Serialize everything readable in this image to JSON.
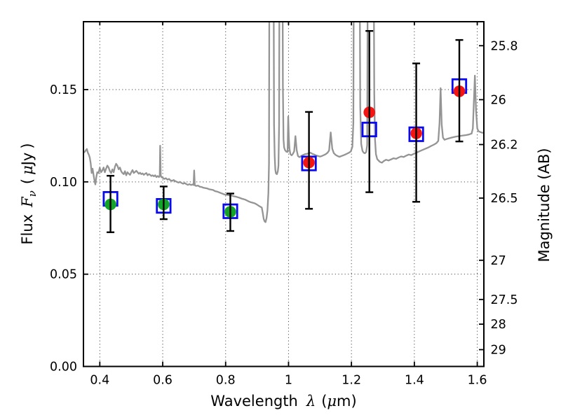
{
  "figure": {
    "xlabel": {
      "word": "Wavelength",
      "lambda": "λ",
      "open": "(",
      "mu": "μ",
      "close": "m)"
    },
    "ylabel_left": {
      "word": "Flux",
      "f_symbol": "F",
      "nu": "ν",
      "open": "(",
      "mu": "μ",
      "unit": "Jy",
      "close": ")"
    },
    "ylabel_right": {
      "text": "Magnitude (AB)"
    }
  },
  "chart_data": {
    "type": "line+scatter",
    "title": "",
    "xlabel": "Wavelength λ (μm)",
    "ylabel_left": "Flux Fν (μJy)",
    "ylabel_right": "Magnitude (AB)",
    "xlim": [
      0.348,
      1.621
    ],
    "ylim": [
      0,
      0.1868
    ],
    "grid": true,
    "x_ticks": [
      0.4,
      0.6,
      0.8,
      1.0,
      1.2,
      1.4,
      1.6
    ],
    "x_tick_labels": [
      "0.4",
      "0.6",
      "0.8",
      "1",
      "1.2",
      "1.4",
      "1.6"
    ],
    "y_ticks_left": [
      0.0,
      0.05,
      0.1,
      0.15
    ],
    "y_tick_labels_left": [
      "0.00",
      "0.05",
      "0.10",
      "0.15"
    ],
    "y_ticks_right_mag": [
      25.8,
      26.0,
      26.2,
      26.5,
      27.0,
      27.5,
      28.0,
      29.0
    ],
    "y_tick_labels_right": [
      "25.8",
      "26",
      "26.2",
      "26.5",
      "27",
      "27.5",
      "28",
      "29"
    ],
    "ab_zero_point": 23.9,
    "colors": {
      "spectrum": "#949494",
      "model_square": "#0a0af0",
      "acs_green": "#12a328",
      "wfc3_red": "#f41412",
      "error_bar": "#000000",
      "axis": "#000000"
    },
    "photometry": [
      {
        "series": "optical",
        "color_key": "acs_green",
        "lambda_um": 0.434,
        "flux_ujy": 0.0878,
        "err_plus": 0.0155,
        "err_minus": 0.0151
      },
      {
        "series": "optical",
        "color_key": "acs_green",
        "lambda_um": 0.603,
        "flux_ujy": 0.0878,
        "err_plus": 0.0097,
        "err_minus": 0.008
      },
      {
        "series": "optical",
        "color_key": "acs_green",
        "lambda_um": 0.815,
        "flux_ujy": 0.0838,
        "err_plus": 0.0099,
        "err_minus": 0.0104
      },
      {
        "series": "infrared",
        "color_key": "wfc3_red",
        "lambda_um": 1.065,
        "flux_ujy": 0.1105,
        "err_plus": 0.0274,
        "err_minus": 0.0251
      },
      {
        "series": "infrared",
        "color_key": "wfc3_red",
        "lambda_um": 1.257,
        "flux_ujy": 0.1377,
        "err_plus": 0.0441,
        "err_minus": 0.0433
      },
      {
        "series": "infrared",
        "color_key": "wfc3_red",
        "lambda_um": 1.406,
        "flux_ujy": 0.1263,
        "err_plus": 0.0379,
        "err_minus": 0.0371
      },
      {
        "series": "infrared",
        "color_key": "wfc3_red",
        "lambda_um": 1.543,
        "flux_ujy": 0.1491,
        "err_plus": 0.0278,
        "err_minus": 0.0272
      }
    ],
    "model_squares": [
      {
        "lambda_um": 0.434,
        "flux_ujy": 0.0908
      },
      {
        "lambda_um": 0.603,
        "flux_ujy": 0.087
      },
      {
        "lambda_um": 0.815,
        "flux_ujy": 0.0841
      },
      {
        "lambda_um": 1.065,
        "flux_ujy": 0.11
      },
      {
        "lambda_um": 1.257,
        "flux_ujy": 0.1284
      },
      {
        "lambda_um": 1.406,
        "flux_ujy": 0.1258
      },
      {
        "lambda_um": 1.543,
        "flux_ujy": 0.1519
      }
    ],
    "spectrum_points": [
      [
        0.348,
        0.1158
      ],
      [
        0.352,
        0.1163
      ],
      [
        0.356,
        0.1172
      ],
      [
        0.359,
        0.1178
      ],
      [
        0.362,
        0.1158
      ],
      [
        0.365,
        0.1148
      ],
      [
        0.368,
        0.1132
      ],
      [
        0.371,
        0.1102
      ],
      [
        0.374,
        0.1048
      ],
      [
        0.377,
        0.1072
      ],
      [
        0.38,
        0.1038
      ],
      [
        0.383,
        0.1008
      ],
      [
        0.386,
        0.0986
      ],
      [
        0.389,
        0.1028
      ],
      [
        0.392,
        0.1052
      ],
      [
        0.396,
        0.1048
      ],
      [
        0.4,
        0.1076
      ],
      [
        0.404,
        0.1052
      ],
      [
        0.408,
        0.1062
      ],
      [
        0.412,
        0.1078
      ],
      [
        0.416,
        0.1052
      ],
      [
        0.42,
        0.1072
      ],
      [
        0.424,
        0.1088
      ],
      [
        0.428,
        0.1078
      ],
      [
        0.432,
        0.1058
      ],
      [
        0.436,
        0.1048
      ],
      [
        0.44,
        0.1068
      ],
      [
        0.444,
        0.1052
      ],
      [
        0.448,
        0.1082
      ],
      [
        0.452,
        0.1098
      ],
      [
        0.456,
        0.1088
      ],
      [
        0.46,
        0.1068
      ],
      [
        0.464,
        0.1078
      ],
      [
        0.468,
        0.1058
      ],
      [
        0.472,
        0.1048
      ],
      [
        0.476,
        0.1042
      ],
      [
        0.48,
        0.1058
      ],
      [
        0.484,
        0.1036
      ],
      [
        0.488,
        0.1052
      ],
      [
        0.492,
        0.1044
      ],
      [
        0.496,
        0.1038
      ],
      [
        0.5,
        0.1052
      ],
      [
        0.504,
        0.1064
      ],
      [
        0.508,
        0.1048
      ],
      [
        0.512,
        0.1054
      ],
      [
        0.516,
        0.106
      ],
      [
        0.52,
        0.1052
      ],
      [
        0.524,
        0.1044
      ],
      [
        0.528,
        0.105
      ],
      [
        0.532,
        0.1042
      ],
      [
        0.536,
        0.1046
      ],
      [
        0.54,
        0.1038
      ],
      [
        0.544,
        0.1044
      ],
      [
        0.548,
        0.1048
      ],
      [
        0.552,
        0.1036
      ],
      [
        0.556,
        0.1042
      ],
      [
        0.56,
        0.1038
      ],
      [
        0.564,
        0.1032
      ],
      [
        0.568,
        0.1036
      ],
      [
        0.572,
        0.103
      ],
      [
        0.576,
        0.1036
      ],
      [
        0.58,
        0.1026
      ],
      [
        0.584,
        0.1032
      ],
      [
        0.588,
        0.1026
      ],
      [
        0.5905,
        0.1032
      ],
      [
        0.592,
        0.1196
      ],
      [
        0.5937,
        0.1036
      ],
      [
        0.596,
        0.1026
      ],
      [
        0.6,
        0.1022
      ],
      [
        0.605,
        0.1016
      ],
      [
        0.61,
        0.102
      ],
      [
        0.615,
        0.1012
      ],
      [
        0.62,
        0.1016
      ],
      [
        0.625,
        0.1008
      ],
      [
        0.63,
        0.1006
      ],
      [
        0.635,
        0.101
      ],
      [
        0.64,
        0.1004
      ],
      [
        0.645,
        0.1
      ],
      [
        0.65,
        0.0996
      ],
      [
        0.655,
        0.1
      ],
      [
        0.66,
        0.0994
      ],
      [
        0.665,
        0.099
      ],
      [
        0.67,
        0.0994
      ],
      [
        0.675,
        0.0988
      ],
      [
        0.68,
        0.0984
      ],
      [
        0.685,
        0.0988
      ],
      [
        0.69,
        0.0983
      ],
      [
        0.695,
        0.0986
      ],
      [
        0.698,
        0.0983
      ],
      [
        0.7,
        0.1062
      ],
      [
        0.702,
        0.0982
      ],
      [
        0.706,
        0.0978
      ],
      [
        0.712,
        0.098
      ],
      [
        0.718,
        0.0974
      ],
      [
        0.724,
        0.0972
      ],
      [
        0.73,
        0.0968
      ],
      [
        0.736,
        0.0966
      ],
      [
        0.742,
        0.0964
      ],
      [
        0.748,
        0.096
      ],
      [
        0.754,
        0.0958
      ],
      [
        0.76,
        0.0956
      ],
      [
        0.766,
        0.095
      ],
      [
        0.772,
        0.0948
      ],
      [
        0.778,
        0.0944
      ],
      [
        0.784,
        0.094
      ],
      [
        0.79,
        0.0936
      ],
      [
        0.796,
        0.0932
      ],
      [
        0.802,
        0.093
      ],
      [
        0.808,
        0.0928
      ],
      [
        0.814,
        0.0926
      ],
      [
        0.82,
        0.0926
      ],
      [
        0.826,
        0.0922
      ],
      [
        0.832,
        0.092
      ],
      [
        0.838,
        0.0917
      ],
      [
        0.844,
        0.0914
      ],
      [
        0.85,
        0.091
      ],
      [
        0.856,
        0.0907
      ],
      [
        0.862,
        0.0904
      ],
      [
        0.868,
        0.0899
      ],
      [
        0.874,
        0.0894
      ],
      [
        0.88,
        0.089
      ],
      [
        0.886,
        0.0887
      ],
      [
        0.892,
        0.0884
      ],
      [
        0.898,
        0.0879
      ],
      [
        0.904,
        0.0872
      ],
      [
        0.91,
        0.0866
      ],
      [
        0.915,
        0.0861
      ],
      [
        0.918,
        0.0832
      ],
      [
        0.921,
        0.08
      ],
      [
        0.924,
        0.0786
      ],
      [
        0.927,
        0.0782
      ],
      [
        0.93,
        0.0804
      ],
      [
        0.933,
        0.0846
      ],
      [
        0.936,
        0.0938
      ],
      [
        0.938,
        0.11
      ],
      [
        0.9395,
        0.25
      ],
      [
        0.952,
        0.25
      ],
      [
        0.954,
        0.131
      ],
      [
        0.956,
        0.1142
      ],
      [
        0.958,
        0.1066
      ],
      [
        0.96,
        0.1046
      ],
      [
        0.963,
        0.1042
      ],
      [
        0.966,
        0.1058
      ],
      [
        0.968,
        0.1088
      ],
      [
        0.97,
        0.131
      ],
      [
        0.9715,
        0.25
      ],
      [
        0.9805,
        0.25
      ],
      [
        0.982,
        0.152
      ],
      [
        0.984,
        0.123
      ],
      [
        0.986,
        0.1186
      ],
      [
        0.989,
        0.1172
      ],
      [
        0.993,
        0.1164
      ],
      [
        0.997,
        0.1162
      ],
      [
        0.999,
        0.1354
      ],
      [
        1.001,
        0.124
      ],
      [
        1.003,
        0.118
      ],
      [
        1.006,
        0.115
      ],
      [
        1.01,
        0.1144
      ],
      [
        1.014,
        0.1152
      ],
      [
        1.018,
        0.1166
      ],
      [
        1.022,
        0.1248
      ],
      [
        1.026,
        0.1172
      ],
      [
        1.03,
        0.114
      ],
      [
        1.035,
        0.1134
      ],
      [
        1.04,
        0.114
      ],
      [
        1.046,
        0.1146
      ],
      [
        1.052,
        0.115
      ],
      [
        1.058,
        0.1152
      ],
      [
        1.064,
        0.1155
      ],
      [
        1.07,
        0.1158
      ],
      [
        1.076,
        0.1152
      ],
      [
        1.082,
        0.1148
      ],
      [
        1.088,
        0.1143
      ],
      [
        1.094,
        0.114
      ],
      [
        1.1,
        0.1137
      ],
      [
        1.106,
        0.114
      ],
      [
        1.112,
        0.1145
      ],
      [
        1.118,
        0.115
      ],
      [
        1.124,
        0.1158
      ],
      [
        1.129,
        0.117
      ],
      [
        1.134,
        0.1268
      ],
      [
        1.139,
        0.118
      ],
      [
        1.144,
        0.1156
      ],
      [
        1.15,
        0.1146
      ],
      [
        1.156,
        0.114
      ],
      [
        1.162,
        0.1136
      ],
      [
        1.168,
        0.114
      ],
      [
        1.174,
        0.1144
      ],
      [
        1.18,
        0.1148
      ],
      [
        1.186,
        0.1153
      ],
      [
        1.192,
        0.1158
      ],
      [
        1.198,
        0.1165
      ],
      [
        1.203,
        0.119
      ],
      [
        1.206,
        0.132
      ],
      [
        1.208,
        0.25
      ],
      [
        1.2255,
        0.25
      ],
      [
        1.228,
        0.141
      ],
      [
        1.231,
        0.1205
      ],
      [
        1.235,
        0.1168
      ],
      [
        1.239,
        0.1158
      ],
      [
        1.243,
        0.1155
      ],
      [
        1.247,
        0.1162
      ],
      [
        1.25,
        0.12
      ],
      [
        1.2525,
        0.25
      ],
      [
        1.27,
        0.25
      ],
      [
        1.2725,
        0.148
      ],
      [
        1.275,
        0.123
      ],
      [
        1.278,
        0.115
      ],
      [
        1.282,
        0.1124
      ],
      [
        1.287,
        0.1114
      ],
      [
        1.292,
        0.1107
      ],
      [
        1.297,
        0.1104
      ],
      [
        1.302,
        0.1112
      ],
      [
        1.31,
        0.112
      ],
      [
        1.318,
        0.1116
      ],
      [
        1.326,
        0.1122
      ],
      [
        1.334,
        0.1128
      ],
      [
        1.342,
        0.1125
      ],
      [
        1.35,
        0.1132
      ],
      [
        1.358,
        0.1138
      ],
      [
        1.366,
        0.1135
      ],
      [
        1.374,
        0.1142
      ],
      [
        1.382,
        0.1148
      ],
      [
        1.39,
        0.1145
      ],
      [
        1.398,
        0.1152
      ],
      [
        1.406,
        0.1158
      ],
      [
        1.414,
        0.1164
      ],
      [
        1.422,
        0.117
      ],
      [
        1.43,
        0.1176
      ],
      [
        1.438,
        0.1182
      ],
      [
        1.446,
        0.1188
      ],
      [
        1.454,
        0.1195
      ],
      [
        1.462,
        0.1202
      ],
      [
        1.47,
        0.121
      ],
      [
        1.476,
        0.1222
      ],
      [
        1.48,
        0.132
      ],
      [
        1.4835,
        0.1508
      ],
      [
        1.487,
        0.131
      ],
      [
        1.491,
        0.124
      ],
      [
        1.496,
        0.1228
      ],
      [
        1.502,
        0.1232
      ],
      [
        1.51,
        0.1236
      ],
      [
        1.518,
        0.124
      ],
      [
        1.526,
        0.1243
      ],
      [
        1.534,
        0.1246
      ],
      [
        1.542,
        0.1248
      ],
      [
        1.55,
        0.125
      ],
      [
        1.558,
        0.1252
      ],
      [
        1.566,
        0.1254
      ],
      [
        1.574,
        0.1257
      ],
      [
        1.582,
        0.1262
      ],
      [
        1.586,
        0.129
      ],
      [
        1.589,
        0.142
      ],
      [
        1.5925,
        0.1576
      ],
      [
        1.596,
        0.139
      ],
      [
        1.6,
        0.129
      ],
      [
        1.604,
        0.1274
      ],
      [
        1.61,
        0.127
      ],
      [
        1.616,
        0.1266
      ],
      [
        1.621,
        0.1268
      ]
    ]
  }
}
